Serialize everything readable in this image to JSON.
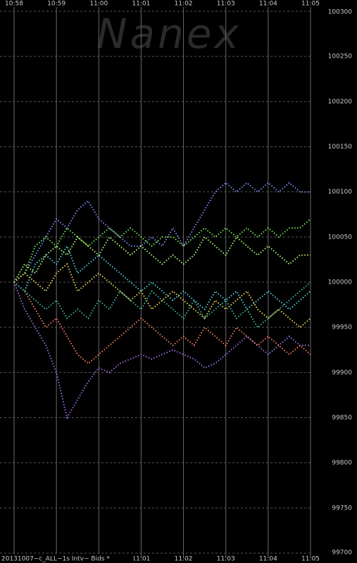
{
  "chart_data": {
    "type": "line",
    "watermark": "Nanex",
    "footer": "20131007~c_ALL~1s Intv~ Bids *",
    "x_labels": [
      "10:58",
      "10:59",
      "11:00",
      "11:01",
      "11:02",
      "11:03",
      "11:04",
      "11:05"
    ],
    "ylim": [
      99700,
      100300
    ],
    "yticks": [
      99700,
      99750,
      99800,
      99850,
      99900,
      99950,
      100000,
      100050,
      100100,
      100150,
      100200,
      100250,
      100300
    ],
    "grid": true,
    "series": [
      {
        "color": "#9a6ce0",
        "values": [
          100000,
          99970,
          99950,
          99930,
          99900,
          99850,
          99870,
          99890,
          99905,
          99900,
          99910,
          99915,
          99920,
          99915,
          99920,
          99925,
          99920,
          99915,
          99905,
          99910,
          99920,
          99930,
          99940,
          99930,
          99920,
          99930,
          99940,
          99930,
          99930
        ]
      },
      {
        "color": "#7a86f0",
        "values": [
          100000,
          100010,
          100030,
          100050,
          100070,
          100060,
          100080,
          100090,
          100070,
          100060,
          100050,
          100040,
          100040,
          100050,
          100040,
          100060,
          100040,
          100060,
          100080,
          100100,
          100110,
          100100,
          100110,
          100100,
          100110,
          100100,
          100110,
          100100,
          100100
        ]
      },
      {
        "color": "#70e050",
        "values": [
          100000,
          100010,
          100040,
          100050,
          100040,
          100060,
          100050,
          100040,
          100050,
          100060,
          100050,
          100060,
          100050,
          100040,
          100050,
          100050,
          100040,
          100050,
          100060,
          100050,
          100060,
          100050,
          100060,
          100050,
          100060,
          100050,
          100060,
          100060,
          100070
        ]
      },
      {
        "color": "#50c8d0",
        "values": [
          100000,
          99990,
          100020,
          100030,
          100020,
          100040,
          100010,
          100020,
          100030,
          100020,
          100010,
          100000,
          99990,
          100000,
          99990,
          99980,
          99990,
          99980,
          99970,
          99990,
          99980,
          99990,
          99970,
          99980,
          99990,
          99980,
          99970,
          99980,
          99990
        ]
      },
      {
        "color": "#f07860",
        "values": [
          100000,
          99990,
          99970,
          99950,
          99960,
          99940,
          99920,
          99910,
          99920,
          99930,
          99940,
          99950,
          99960,
          99950,
          99940,
          99930,
          99940,
          99930,
          99950,
          99940,
          99930,
          99950,
          99940,
          99930,
          99940,
          99930,
          99920,
          99930,
          99920
        ]
      },
      {
        "color": "#e8d050",
        "values": [
          100000,
          100010,
          100000,
          99990,
          100010,
          100020,
          99990,
          100000,
          100010,
          100000,
          99990,
          99980,
          99990,
          99970,
          99980,
          99990,
          99980,
          99970,
          99960,
          99980,
          99970,
          99980,
          99990,
          99970,
          99960,
          99970,
          99960,
          99950,
          99960
        ]
      },
      {
        "color": "#a8f070",
        "values": [
          100000,
          100020,
          100010,
          100030,
          100040,
          100030,
          100050,
          100040,
          100030,
          100050,
          100040,
          100030,
          100040,
          100030,
          100020,
          100030,
          100020,
          100030,
          100050,
          100040,
          100030,
          100050,
          100040,
          100030,
          100040,
          100030,
          100020,
          100030,
          100030
        ]
      },
      {
        "color": "#40b0a0",
        "values": [
          100000,
          99990,
          99980,
          99970,
          99980,
          99960,
          99970,
          99960,
          99980,
          99970,
          99990,
          99980,
          99970,
          99990,
          99980,
          99970,
          99960,
          99980,
          99960,
          99970,
          99980,
          99960,
          99970,
          99950,
          99960,
          99970,
          99980,
          99990,
          100000
        ]
      }
    ]
  }
}
